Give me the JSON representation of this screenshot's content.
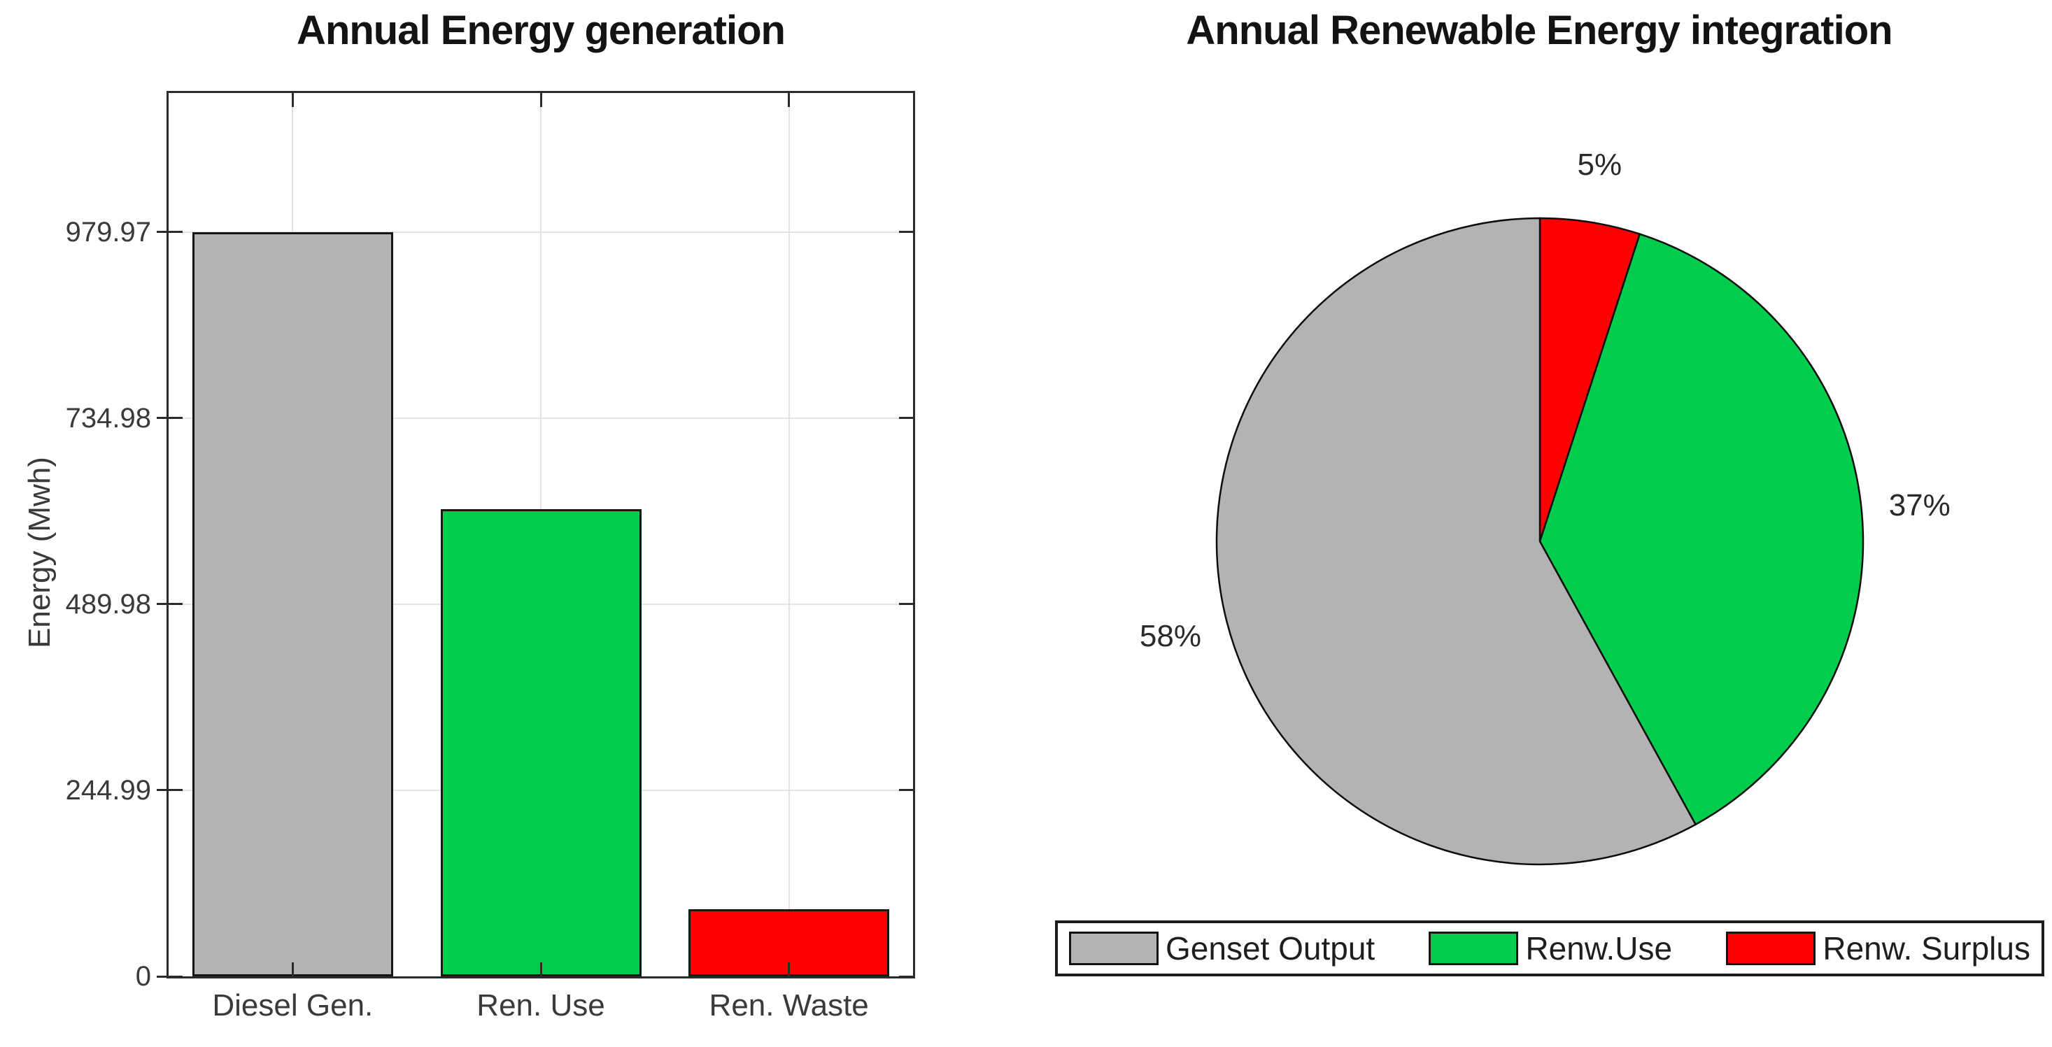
{
  "figure": {
    "background": "#ffffff"
  },
  "colors": {
    "gray": "#b3b3b3",
    "green": "#00cc4d",
    "red": "#fe0000"
  },
  "chart_data": [
    {
      "type": "bar",
      "title": "Annual Energy generation",
      "xlabel": "",
      "ylabel": "Energy (Mwh)",
      "categories": [
        "Diesel Gen.",
        "Ren. Use",
        "Ren. Waste"
      ],
      "values": [
        979.97,
        615,
        88
      ],
      "bar_colors": [
        "#b3b3b3",
        "#00cc4d",
        "#fe0000"
      ],
      "yticks": [
        {
          "value": 0,
          "label": "0"
        },
        {
          "value": 244.99,
          "label": "244.99"
        },
        {
          "value": 489.98,
          "label": "489.98"
        },
        {
          "value": 734.98,
          "label": "734.98"
        },
        {
          "value": 979.97,
          "label": "979.97"
        }
      ],
      "ylim": [
        0,
        1163
      ],
      "grid": true,
      "legend_position": "none"
    },
    {
      "type": "pie",
      "title": "Annual Renewable Energy integration",
      "direction": "clockwise-from-top",
      "slices": [
        {
          "label": "Renw. Surplus",
          "pct": 5,
          "pct_label": "5%",
          "color": "#fe0000"
        },
        {
          "label": "Renw.Use",
          "pct": 37,
          "pct_label": "37%",
          "color": "#00cc4d"
        },
        {
          "label": "Genset Output",
          "pct": 58,
          "pct_label": "58%",
          "color": "#b3b3b3"
        }
      ],
      "legend_position": "bottom"
    }
  ],
  "legend": {
    "items": [
      {
        "label": "Genset Output",
        "color": "#b3b3b3"
      },
      {
        "label": "Renw.Use",
        "color": "#00cc4d"
      },
      {
        "label": "Renw. Surplus",
        "color": "#fe0000"
      }
    ]
  }
}
